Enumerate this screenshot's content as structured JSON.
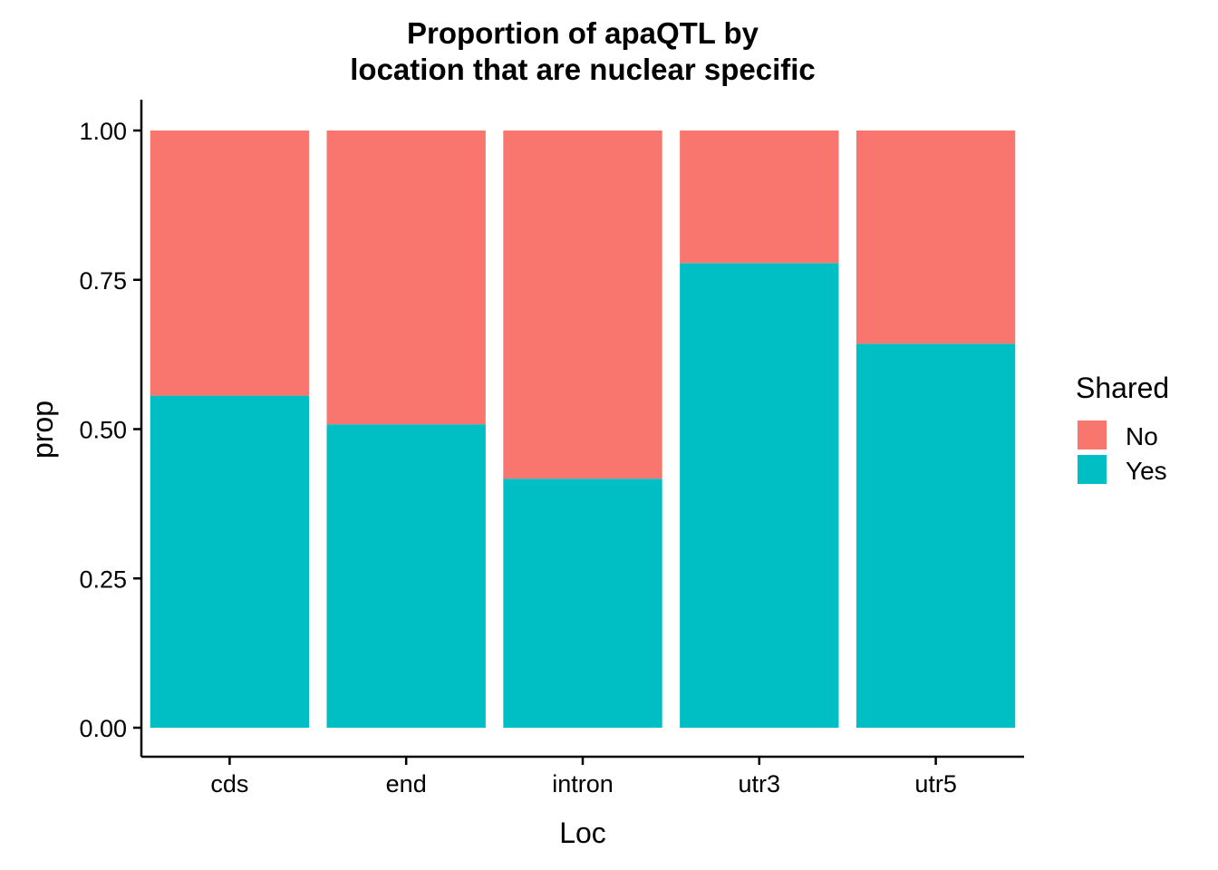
{
  "chart_data": {
    "type": "bar",
    "stacked": true,
    "title_lines": [
      "Proportion of apaQTL by",
      "location that are nuclear specific"
    ],
    "xlabel": "Loc",
    "ylabel": "prop",
    "categories": [
      "cds",
      "end",
      "intron",
      "utr3",
      "utr5"
    ],
    "series": [
      {
        "name": "No",
        "color": "#F8766D",
        "values": [
          0.444,
          0.492,
          0.583,
          0.222,
          0.357
        ]
      },
      {
        "name": "Yes",
        "color": "#00BFC4",
        "values": [
          0.556,
          0.508,
          0.417,
          0.778,
          0.643
        ]
      }
    ],
    "ylim": [
      0,
      1
    ],
    "yticks": [
      0.0,
      0.25,
      0.5,
      0.75,
      1.0
    ],
    "ytick_labels": [
      "0.00",
      "0.25",
      "0.50",
      "0.75",
      "1.00"
    ],
    "grid": false,
    "legend": {
      "title": "Shared",
      "position": "right",
      "order": [
        "No",
        "Yes"
      ]
    }
  }
}
